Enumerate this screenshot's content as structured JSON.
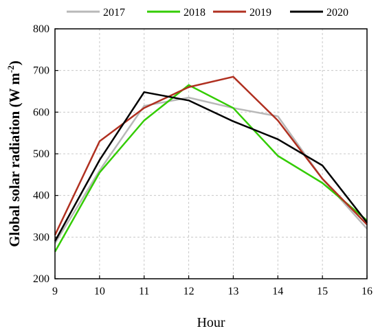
{
  "chart_data": {
    "type": "line",
    "xlabel": "Hour",
    "ylabel": "Global solar radiation (W m",
    "ylabel_sup": "-2",
    "ylabel_close": ")",
    "x": [
      9,
      10,
      11,
      12,
      13,
      14,
      15,
      16
    ],
    "xlim": [
      9,
      16
    ],
    "ylim": [
      200,
      800
    ],
    "xticks": [
      9,
      10,
      11,
      12,
      13,
      14,
      15,
      16
    ],
    "yticks": [
      200,
      300,
      400,
      500,
      600,
      700,
      800
    ],
    "grid": true,
    "legend_position": "top",
    "series": [
      {
        "name": "2017",
        "color": "#b8b8b8",
        "values": [
          285,
          460,
          615,
          635,
          610,
          590,
          440,
          320
        ]
      },
      {
        "name": "2018",
        "color": "#33cc00",
        "values": [
          265,
          455,
          580,
          665,
          610,
          495,
          430,
          340
        ]
      },
      {
        "name": "2019",
        "color": "#b03020",
        "values": [
          305,
          530,
          610,
          660,
          685,
          580,
          440,
          330
        ]
      },
      {
        "name": "2020",
        "color": "#000000",
        "values": [
          290,
          485,
          648,
          628,
          578,
          535,
          472,
          335
        ]
      }
    ]
  }
}
